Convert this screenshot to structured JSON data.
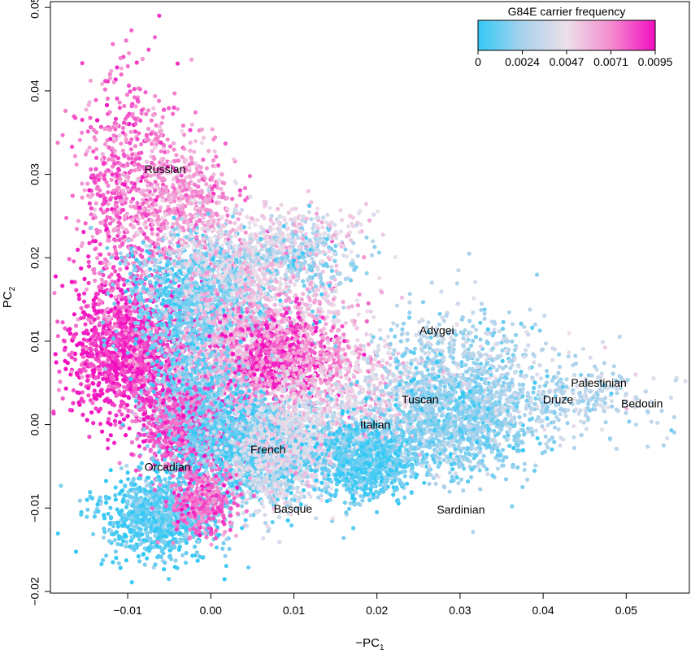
{
  "chart_data": {
    "type": "scatter",
    "title": "",
    "xlabel": "−PC",
    "xlabel_sub": "1",
    "ylabel": "PC",
    "ylabel_sub": "2",
    "xlim": [
      -0.0193,
      0.0576
    ],
    "ylim": [
      -0.0202,
      0.0507
    ],
    "x_ticks": [
      -0.01,
      0.0,
      0.01,
      0.02,
      0.03,
      0.04,
      0.05
    ],
    "x_tick_labels": [
      "−0.01",
      "0.00",
      "0.01",
      "0.02",
      "0.03",
      "0.04",
      "0.05"
    ],
    "y_ticks": [
      -0.02,
      -0.01,
      0.0,
      0.01,
      0.02,
      0.03,
      0.04,
      0.05
    ],
    "y_tick_labels": [
      "−0.02",
      "−0.01",
      "0.00",
      "0.01",
      "0.02",
      "0.03",
      "0.04",
      "0.05"
    ],
    "grid": false,
    "legend": {
      "title": "G84E carrier frequency",
      "placement": "top-right",
      "range": [
        0,
        0.0095
      ],
      "tick_labels": [
        "0",
        "0.0024",
        "0.0047",
        "0.0071",
        "0.0095"
      ],
      "colors": [
        "#33c9f5",
        "#a8d2ec",
        "#ece0ea",
        "#f48ccf",
        "#f20fc0"
      ]
    },
    "population_labels": [
      {
        "name": "Russian",
        "x": -0.0055,
        "y": 0.0305
      },
      {
        "name": "Adygei",
        "x": 0.0272,
        "y": 0.0112
      },
      {
        "name": "Palestinian",
        "x": 0.0467,
        "y": 0.0049
      },
      {
        "name": "Tuscan",
        "x": 0.0252,
        "y": 0.0029
      },
      {
        "name": "Druze",
        "x": 0.0418,
        "y": 0.0029
      },
      {
        "name": "Bedouin",
        "x": 0.0519,
        "y": 0.0024
      },
      {
        "name": "Italian",
        "x": 0.0198,
        "y": -0.0001
      },
      {
        "name": "French",
        "x": 0.0069,
        "y": -0.0031
      },
      {
        "name": "Orcadian",
        "x": -0.0052,
        "y": -0.0052
      },
      {
        "name": "Basque",
        "x": 0.0099,
        "y": -0.0102
      },
      {
        "name": "Sardinian",
        "x": 0.0301,
        "y": -0.0103
      }
    ],
    "clusters": [
      {
        "cx": -0.009,
        "cy": 0.009,
        "sx": 0.004,
        "sy": 0.0045,
        "n": 1700,
        "f": 0.0088
      },
      {
        "cx": -0.01,
        "cy": 0.028,
        "sx": 0.003,
        "sy": 0.007,
        "n": 700,
        "f": 0.0076
      },
      {
        "cx": -0.003,
        "cy": 0.027,
        "sx": 0.0028,
        "sy": 0.0035,
        "n": 500,
        "f": 0.0068
      },
      {
        "cx": -0.001,
        "cy": 0.015,
        "sx": 0.0045,
        "sy": 0.0035,
        "n": 1200,
        "f": 0.0012
      },
      {
        "cx": 0.004,
        "cy": 0.02,
        "sx": 0.005,
        "sy": 0.003,
        "n": 450,
        "f": 0.0045
      },
      {
        "cx": 0.008,
        "cy": 0.015,
        "sx": 0.005,
        "sy": 0.004,
        "n": 500,
        "f": 0.0055
      },
      {
        "cx": 0.01,
        "cy": 0.02,
        "sx": 0.004,
        "sy": 0.002,
        "n": 220,
        "f": 0.002
      },
      {
        "cx": 0.002,
        "cy": 0.007,
        "sx": 0.004,
        "sy": 0.004,
        "n": 900,
        "f": 0.006
      },
      {
        "cx": 0.008,
        "cy": 0.008,
        "sx": 0.003,
        "sy": 0.0025,
        "n": 550,
        "f": 0.0088
      },
      {
        "cx": 0.012,
        "cy": 0.007,
        "sx": 0.004,
        "sy": 0.003,
        "n": 400,
        "f": 0.0066
      },
      {
        "cx": -0.002,
        "cy": 0.002,
        "sx": 0.003,
        "sy": 0.004,
        "n": 700,
        "f": 0.0015
      },
      {
        "cx": -0.003,
        "cy": -0.001,
        "sx": 0.003,
        "sy": 0.0025,
        "n": 600,
        "f": 0.0082
      },
      {
        "cx": 0.005,
        "cy": -0.003,
        "sx": 0.0045,
        "sy": 0.003,
        "n": 1400,
        "f": 0.001
      },
      {
        "cx": 0.008,
        "cy": -0.005,
        "sx": 0.004,
        "sy": 0.003,
        "n": 500,
        "f": 0.004
      },
      {
        "cx": 0.012,
        "cy": 0.0,
        "sx": 0.004,
        "sy": 0.003,
        "n": 500,
        "f": 0.0048
      },
      {
        "cx": -0.006,
        "cy": -0.011,
        "sx": 0.0035,
        "sy": 0.0025,
        "n": 1000,
        "f": 0.0008
      },
      {
        "cx": -0.001,
        "cy": -0.009,
        "sx": 0.002,
        "sy": 0.002,
        "n": 350,
        "f": 0.0078
      },
      {
        "cx": 0.019,
        "cy": -0.004,
        "sx": 0.003,
        "sy": 0.0025,
        "n": 900,
        "f": 0.0008
      },
      {
        "cx": 0.022,
        "cy": 0.004,
        "sx": 0.004,
        "sy": 0.003,
        "n": 400,
        "f": 0.0046
      },
      {
        "cx": 0.03,
        "cy": 0.001,
        "sx": 0.0045,
        "sy": 0.0035,
        "n": 1300,
        "f": 0.0018
      },
      {
        "cx": 0.03,
        "cy": 0.01,
        "sx": 0.005,
        "sy": 0.003,
        "n": 250,
        "f": 0.0028
      },
      {
        "cx": 0.042,
        "cy": 0.003,
        "sx": 0.006,
        "sy": 0.0025,
        "n": 350,
        "f": 0.003
      },
      {
        "cx": 0.011,
        "cy": 0.023,
        "sx": 0.004,
        "sy": 0.002,
        "n": 150,
        "f": 0.005
      }
    ]
  }
}
